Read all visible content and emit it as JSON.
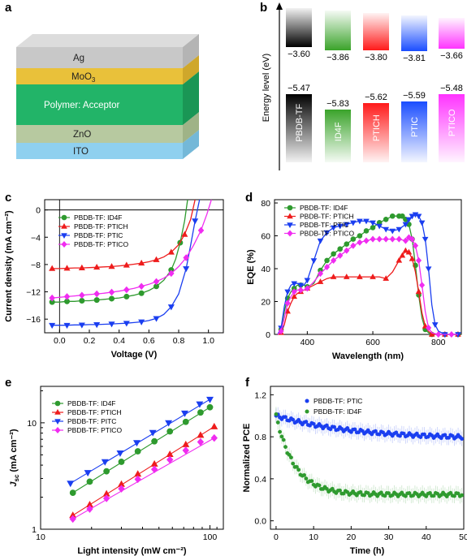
{
  "panels": {
    "a": {
      "letter": "a",
      "layers": [
        {
          "label": "Ag",
          "top": "#dcdcdc",
          "front": "#c8c8c8",
          "side": "#b4b4b4"
        },
        {
          "label": "MoO3",
          "label_main": "MoO",
          "label_sub": "3",
          "top": "#f4d458",
          "front": "#e9c13a",
          "side": "#cfa72b"
        },
        {
          "label": "Polymer: Acceptor",
          "top": "#34c27a",
          "front": "#22b468",
          "side": "#1a9655",
          "text_color": "#ffffff"
        },
        {
          "label": "ZnO",
          "top": "#c8d6b4",
          "front": "#b7c9a0",
          "side": "#9fb387"
        },
        {
          "label": "ITO",
          "top": "#a8dcf4",
          "front": "#8fd0ef",
          "side": "#74b8d8"
        }
      ]
    },
    "b": {
      "letter": "b",
      "ylabel": "Energy level (eV)",
      "materials": [
        {
          "name": "PBDB-TF",
          "lumo": "−3.60",
          "homo": "−5.47",
          "color": "#000000"
        },
        {
          "name": "ID4F",
          "lumo": "−3.86",
          "homo": "−5.83",
          "color": "#3aa32a"
        },
        {
          "name": "PTICH",
          "lumo": "−3.80",
          "homo": "−5.62",
          "color": "#ff1a1a"
        },
        {
          "name": "PTIC",
          "lumo": "−3.81",
          "homo": "−5.59",
          "color": "#1a4dff"
        },
        {
          "name": "PTICO",
          "lumo": "−3.66",
          "homo": "−5.48",
          "color": "#ff33ff"
        }
      ]
    },
    "c": {
      "letter": "c"
    },
    "d": {
      "letter": "d"
    },
    "e": {
      "letter": "e"
    },
    "f": {
      "letter": "f"
    }
  },
  "chart_data": [
    {
      "panel": "c",
      "type": "line",
      "xlabel": "Voltage (V)",
      "ylabel": "Current density (mA cm⁻²)",
      "xlim": [
        -0.1,
        1.1
      ],
      "ylim": [
        -18,
        1.5
      ],
      "xticks": [
        "0.0",
        "0.2",
        "0.4",
        "0.6",
        "0.8",
        "1.0"
      ],
      "yticks": [
        "0",
        "−4",
        "−8",
        "−12",
        "−16"
      ],
      "series": [
        {
          "name": "PBDB-TF: ID4F",
          "color": "#2e9a2e",
          "marker": "circle",
          "x": [
            -0.05,
            0.0,
            0.05,
            0.1,
            0.15,
            0.2,
            0.25,
            0.3,
            0.35,
            0.4,
            0.45,
            0.5,
            0.55,
            0.6,
            0.65,
            0.7,
            0.75,
            0.78,
            0.81,
            0.84,
            0.86
          ],
          "y": [
            -13.5,
            -13.5,
            -13.4,
            -13.4,
            -13.3,
            -13.3,
            -13.2,
            -13.1,
            -13.0,
            -12.9,
            -12.7,
            -12.5,
            -12.2,
            -11.8,
            -11.2,
            -10.3,
            -8.8,
            -7.2,
            -4.8,
            -1.6,
            1.5
          ]
        },
        {
          "name": "PBDB-TF: PTICH",
          "color": "#ee1c1c",
          "marker": "triangle-up",
          "x": [
            -0.05,
            0.0,
            0.05,
            0.1,
            0.15,
            0.2,
            0.25,
            0.3,
            0.35,
            0.4,
            0.45,
            0.5,
            0.55,
            0.6,
            0.65,
            0.7,
            0.75,
            0.8,
            0.84,
            0.88,
            0.91
          ],
          "y": [
            -8.6,
            -8.6,
            -8.55,
            -8.5,
            -8.5,
            -8.45,
            -8.4,
            -8.35,
            -8.3,
            -8.2,
            -8.1,
            -7.95,
            -7.8,
            -7.6,
            -7.3,
            -6.9,
            -6.2,
            -5.1,
            -3.6,
            -1.4,
            1.5
          ]
        },
        {
          "name": "PBDB-TF: PTIC",
          "color": "#1a3ef0",
          "marker": "triangle-down",
          "x": [
            -0.05,
            0.0,
            0.05,
            0.1,
            0.15,
            0.2,
            0.25,
            0.3,
            0.35,
            0.4,
            0.45,
            0.5,
            0.55,
            0.6,
            0.65,
            0.7,
            0.75,
            0.8,
            0.85,
            0.88,
            0.91,
            0.94
          ],
          "y": [
            -16.9,
            -16.9,
            -16.9,
            -16.85,
            -16.85,
            -16.8,
            -16.8,
            -16.75,
            -16.7,
            -16.65,
            -16.6,
            -16.5,
            -16.4,
            -16.2,
            -15.9,
            -15.3,
            -14.2,
            -12.3,
            -8.6,
            -5.2,
            -1.6,
            1.5
          ]
        },
        {
          "name": "PBDB-TF: PTICO",
          "color": "#f02cf0",
          "marker": "diamond",
          "x": [
            -0.05,
            0.0,
            0.05,
            0.1,
            0.15,
            0.2,
            0.25,
            0.3,
            0.35,
            0.4,
            0.45,
            0.5,
            0.55,
            0.6,
            0.65,
            0.7,
            0.75,
            0.8,
            0.85,
            0.9,
            0.95,
            0.99,
            1.02
          ],
          "y": [
            -12.9,
            -12.8,
            -12.7,
            -12.6,
            -12.5,
            -12.4,
            -12.3,
            -12.2,
            -12.05,
            -11.9,
            -11.7,
            -11.5,
            -11.2,
            -10.9,
            -10.5,
            -10.0,
            -9.3,
            -8.3,
            -7.0,
            -5.2,
            -3.0,
            -0.6,
            1.5
          ]
        }
      ]
    },
    {
      "panel": "d",
      "type": "line",
      "xlabel": "Wavelength (nm)",
      "ylabel": "EQE (%)",
      "xlim": [
        300,
        870
      ],
      "ylim": [
        0,
        82
      ],
      "xticks": [
        "400",
        "600",
        "800"
      ],
      "yticks": [
        "0",
        "20",
        "40",
        "60",
        "80"
      ],
      "series": [
        {
          "name": "PBDB-TF: ID4F",
          "color": "#2e9a2e",
          "marker": "circle",
          "x": [
            310,
            320,
            330,
            340,
            350,
            360,
            370,
            380,
            390,
            400,
            420,
            440,
            460,
            480,
            500,
            520,
            540,
            560,
            580,
            600,
            620,
            640,
            660,
            680,
            690,
            700,
            710,
            720,
            730,
            740,
            750,
            760,
            770,
            780,
            800,
            820,
            840,
            860
          ],
          "y": [
            0,
            3,
            14,
            22,
            26,
            28,
            30,
            30,
            30,
            29,
            31,
            39,
            45,
            49,
            52,
            55,
            58,
            60,
            63,
            65,
            68,
            70,
            72,
            72,
            72,
            70,
            67,
            58,
            42,
            24,
            10,
            3,
            1,
            0,
            0,
            0,
            0,
            0
          ]
        },
        {
          "name": "PBDB-TF: PTICH",
          "color": "#ee1c1c",
          "marker": "triangle-up",
          "x": [
            310,
            320,
            330,
            340,
            350,
            360,
            370,
            380,
            390,
            400,
            420,
            440,
            460,
            480,
            500,
            520,
            540,
            560,
            580,
            600,
            620,
            640,
            660,
            680,
            690,
            700,
            710,
            720,
            730,
            740,
            750,
            760,
            770,
            780,
            800,
            820,
            840,
            860
          ],
          "y": [
            0,
            1,
            6,
            14,
            19,
            23,
            25,
            26,
            27,
            28,
            30,
            32,
            34,
            35,
            35,
            35,
            35,
            35,
            35,
            35,
            35,
            34,
            38,
            45,
            48,
            51,
            50,
            46,
            38,
            26,
            13,
            5,
            2,
            0,
            0,
            0,
            0,
            0
          ]
        },
        {
          "name": "PBDB-TF: PTIC",
          "color": "#1a3ef0",
          "marker": "triangle-down",
          "x": [
            310,
            320,
            330,
            340,
            350,
            360,
            370,
            380,
            390,
            400,
            420,
            440,
            460,
            480,
            500,
            520,
            540,
            560,
            580,
            600,
            620,
            640,
            660,
            680,
            700,
            710,
            720,
            730,
            740,
            750,
            760,
            770,
            780,
            790,
            800,
            820,
            840,
            860
          ],
          "y": [
            0,
            4,
            17,
            26,
            30,
            31,
            31,
            30,
            30,
            33,
            45,
            57,
            62,
            65,
            66,
            67,
            68,
            69,
            69,
            68,
            66,
            64,
            63,
            64,
            67,
            70,
            72,
            73,
            72,
            68,
            58,
            40,
            18,
            6,
            2,
            0,
            0,
            0
          ]
        },
        {
          "name": "PBDB-TF: PTICO",
          "color": "#f02cf0",
          "marker": "diamond",
          "x": [
            310,
            320,
            330,
            340,
            350,
            360,
            370,
            380,
            390,
            400,
            420,
            440,
            460,
            480,
            500,
            520,
            540,
            560,
            580,
            600,
            620,
            640,
            660,
            680,
            700,
            710,
            720,
            730,
            740,
            750,
            760,
            770,
            780,
            800,
            820,
            840,
            860
          ],
          "y": [
            0,
            2,
            10,
            19,
            23,
            26,
            27,
            27,
            27,
            28,
            32,
            37,
            41,
            45,
            48,
            51,
            54,
            56,
            57,
            58,
            58,
            58,
            58,
            58,
            57,
            59,
            58,
            54,
            45,
            30,
            14,
            4,
            1,
            0,
            0,
            0,
            0
          ]
        }
      ]
    },
    {
      "panel": "e",
      "type": "scatter",
      "xlabel": "Light intensity (mW cm⁻²)",
      "ylabel_main": "J",
      "ylabel_sub": "sc",
      "ylabel_rest": " (mA cm⁻²)",
      "xscale": "log",
      "yscale": "log",
      "xlim": [
        10,
        120
      ],
      "ylim": [
        1,
        22
      ],
      "xticks": [
        "10",
        "100"
      ],
      "yticks": [
        "1",
        "10"
      ],
      "series": [
        {
          "name": "PBDB-TF: ID4F",
          "color": "#2e9a2e",
          "marker": "circle",
          "x": [
            15.5,
            19.5,
            24.5,
            30,
            37.5,
            47,
            58,
            72,
            88,
            100
          ],
          "y": [
            2.2,
            2.8,
            3.5,
            4.3,
            5.4,
            6.7,
            8.3,
            10.2,
            12.5,
            14.0
          ]
        },
        {
          "name": "PBDB-TF: PTICH",
          "color": "#ee1c1c",
          "marker": "triangle-up",
          "x": [
            15.5,
            19.5,
            24.5,
            30,
            37.5,
            47,
            58,
            72,
            88,
            106
          ],
          "y": [
            1.35,
            1.7,
            2.15,
            2.65,
            3.3,
            4.1,
            5.05,
            6.25,
            7.65,
            9.2
          ]
        },
        {
          "name": "PBDB-TF: PITC",
          "color": "#1a3ef0",
          "marker": "triangle-down",
          "x": [
            15,
            19,
            24,
            29.5,
            37,
            46,
            57,
            71,
            87,
            100
          ],
          "y": [
            2.7,
            3.4,
            4.3,
            5.2,
            6.5,
            8.1,
            10.0,
            12.3,
            15.0,
            16.6
          ]
        },
        {
          "name": "PBDB-TF: PTICO",
          "color": "#f02cf0",
          "marker": "diamond",
          "x": [
            15.5,
            19.5,
            24.5,
            30,
            37.5,
            47,
            58,
            72,
            88,
            106
          ],
          "y": [
            1.25,
            1.55,
            1.95,
            2.4,
            2.95,
            3.65,
            4.5,
            5.5,
            6.6,
            7.2
          ]
        }
      ]
    },
    {
      "panel": "f",
      "type": "scatter",
      "xlabel": "Time (h)",
      "ylabel": "Normalized PCE",
      "xlim": [
        -1.5,
        50
      ],
      "ylim": [
        -0.08,
        1.28
      ],
      "xticks": [
        "0",
        "10",
        "20",
        "30",
        "40",
        "50"
      ],
      "yticks": [
        "0.0",
        "0.4",
        "0.8",
        "1.2"
      ],
      "series": [
        {
          "name": "PBDB-TF: PTIC",
          "color": "#1a3ef0",
          "marker": "circle",
          "decay": {
            "start": 1.0,
            "end": 0.78,
            "rate": 0.05,
            "n": 100
          }
        },
        {
          "name": "PBDB-TF: ID4F",
          "color": "#2e9a2e",
          "marker": "circle",
          "decay": {
            "start": 1.0,
            "end": 0.25,
            "rate": 0.2,
            "n": 100
          }
        }
      ]
    }
  ]
}
